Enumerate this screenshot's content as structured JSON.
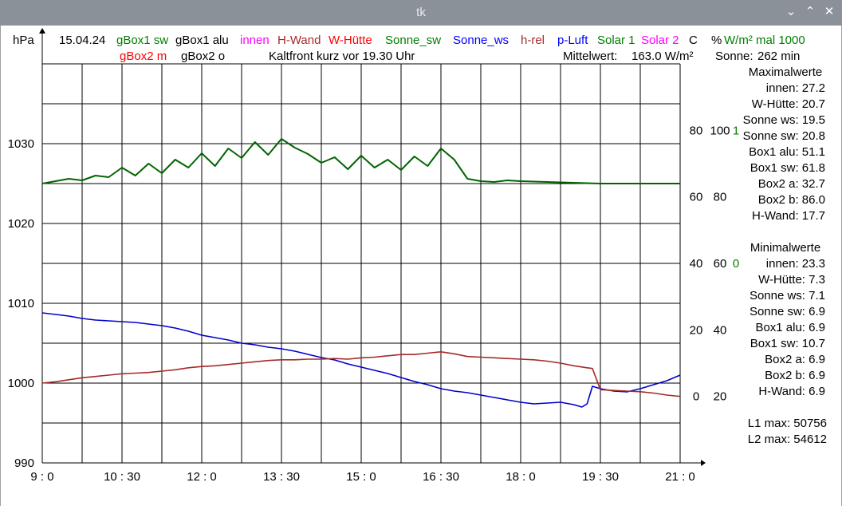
{
  "window": {
    "title": "tk",
    "controls": {
      "minimize": "⌄",
      "maximize": "⌃",
      "close": "✕"
    }
  },
  "colors": {
    "gBox1_sw": "#008000",
    "gBox1_alu": "#000000",
    "innen": "#ff00ff",
    "H_Wand": "#a52a2a",
    "W_Huette": "#ff0000",
    "Sonne_sw": "#008000",
    "Sonne_ws": "#0000ff",
    "h_rel": "#a52a2a",
    "p_Luft": "#0000ff",
    "Solar1": "#008000",
    "Solar2": "#ff00ff",
    "pressure_line": "#0000cc",
    "sun_line": "#006400",
    "hrel_line": "#a52a2a"
  },
  "header": {
    "date": "15.04.24",
    "unit_hpa": "hPa",
    "unit_c": "C",
    "unit_pct": "%",
    "unit_wm2": "W/m² mal 1000",
    "legend_row1": [
      {
        "label": "gBox1 sw",
        "color": "gBox1_sw"
      },
      {
        "label": "gBox1 alu",
        "color": "gBox1_alu"
      },
      {
        "label": "innen",
        "color": "innen"
      },
      {
        "label": "H-Wand",
        "color": "H_Wand"
      },
      {
        "label": "W-Hütte",
        "color": "W_Huette"
      },
      {
        "label": "Sonne_sw",
        "color": "Sonne_sw"
      },
      {
        "label": "Sonne_ws",
        "color": "Sonne_ws"
      },
      {
        "label": "h-rel",
        "color": "h_rel"
      },
      {
        "label": "p-Luft",
        "color": "p_Luft"
      },
      {
        "label": "Solar 1",
        "color": "Solar1"
      },
      {
        "label": "Solar 2",
        "color": "Solar2"
      }
    ],
    "legend_row2": [
      {
        "label": "gBox2 m",
        "color": "W_Huette"
      },
      {
        "label": "gBox2 o",
        "color": "gBox1_alu"
      }
    ],
    "note": "Kaltfront kurz vor 19.30 Uhr",
    "mittelwert_label": "Mittelwert:",
    "mittelwert_value": "163.0 W/m²",
    "sonne_label": "Sonne:",
    "sonne_value": "262 min"
  },
  "stats": {
    "max_title": "Maximalwerte",
    "max_lines": [
      "innen: 27.2",
      "W-Hütte: 20.7",
      "Sonne ws: 19.5",
      "Sonne sw: 20.8",
      "Box1 alu: 51.1",
      "Box1 sw: 61.8",
      "Box2 a: 32.7",
      "Box2 b: 86.0",
      "H-Wand: 17.7"
    ],
    "min_title": "Minimalwerte",
    "min_lines": [
      "innen: 23.3",
      "W-Hütte: 7.3",
      "Sonne ws: 7.1",
      "Sonne sw: 6.9",
      "Box1 alu: 6.9",
      "Box1 sw: 10.7",
      "Box2 a: 6.9",
      "Box2 b: 6.9",
      "H-Wand: 6.9"
    ],
    "l1": "L1 max: 50756",
    "l2": "L2 max: 54612"
  },
  "chart_data": {
    "type": "line",
    "x_ticks": [
      "9 : 0",
      "10 : 30",
      "12 : 0",
      "13 : 30",
      "15 : 0",
      "16 : 30",
      "18 : 0",
      "19 : 30",
      "21 : 0"
    ],
    "x_range_hours": [
      9,
      21
    ],
    "pressure_axis": {
      "ticks": [
        990,
        1000,
        1010,
        1020,
        1030
      ],
      "range": [
        990,
        1040
      ]
    },
    "temp_axis": {
      "ticks": [
        0,
        20,
        40,
        60,
        80
      ],
      "range": [
        -20,
        100
      ]
    },
    "rh_axis": {
      "ticks": [
        20,
        40,
        60,
        80,
        100
      ],
      "range": [
        0,
        120
      ]
    },
    "solar_axis": {
      "ticks": [
        0,
        1
      ],
      "range": [
        -1.5,
        1.5
      ]
    },
    "series": [
      {
        "name": "p-Luft",
        "color": "pressure_line",
        "axis": "pressure",
        "x": [
          9.0,
          9.25,
          9.5,
          9.75,
          10.0,
          10.25,
          10.5,
          10.75,
          11.0,
          11.25,
          11.5,
          11.75,
          12.0,
          12.25,
          12.5,
          12.75,
          13.0,
          13.25,
          13.5,
          13.75,
          14.0,
          14.25,
          14.5,
          14.75,
          15.0,
          15.25,
          15.5,
          15.75,
          16.0,
          16.25,
          16.5,
          16.75,
          17.0,
          17.25,
          17.5,
          17.75,
          18.0,
          18.25,
          18.5,
          18.75,
          19.0,
          19.15,
          19.25,
          19.35,
          19.5,
          19.75,
          20.0,
          20.25,
          20.5,
          20.75,
          21.0
        ],
        "y": [
          1008.8,
          1008.6,
          1008.4,
          1008.1,
          1007.9,
          1007.8,
          1007.7,
          1007.6,
          1007.4,
          1007.2,
          1006.9,
          1006.5,
          1006.0,
          1005.7,
          1005.4,
          1005.0,
          1004.8,
          1004.5,
          1004.3,
          1004.0,
          1003.6,
          1003.2,
          1002.9,
          1002.4,
          1002.0,
          1001.6,
          1001.2,
          1000.7,
          1000.2,
          999.8,
          999.3,
          999.0,
          998.8,
          998.5,
          998.2,
          997.9,
          997.6,
          997.4,
          997.5,
          997.6,
          997.3,
          997.0,
          997.4,
          999.6,
          999.3,
          999.0,
          998.9,
          999.3,
          999.8,
          1000.3,
          1001.0
        ]
      },
      {
        "name": "h-rel",
        "color": "hrel_line",
        "axis": "rh",
        "x": [
          9.0,
          9.25,
          9.5,
          9.75,
          10.0,
          10.25,
          10.5,
          10.75,
          11.0,
          11.25,
          11.5,
          11.75,
          12.0,
          12.25,
          12.5,
          12.75,
          13.0,
          13.25,
          13.5,
          13.75,
          14.0,
          14.25,
          14.5,
          14.75,
          15.0,
          15.25,
          15.5,
          15.75,
          16.0,
          16.25,
          16.5,
          16.75,
          17.0,
          17.25,
          17.5,
          17.75,
          18.0,
          18.25,
          18.5,
          18.75,
          19.0,
          19.25,
          19.35,
          19.5,
          19.75,
          20.0,
          20.25,
          20.5,
          20.75,
          21.0
        ],
        "y": [
          24.0,
          24.4,
          25.0,
          25.6,
          26.0,
          26.4,
          26.8,
          27.0,
          27.2,
          27.6,
          28.0,
          28.6,
          29.0,
          29.2,
          29.6,
          30.0,
          30.4,
          30.8,
          31.0,
          31.0,
          31.2,
          31.2,
          31.4,
          31.2,
          31.6,
          31.8,
          32.2,
          32.6,
          32.6,
          33.0,
          33.4,
          32.8,
          32.0,
          31.8,
          31.6,
          31.4,
          31.2,
          31.0,
          30.6,
          30.0,
          29.2,
          28.6,
          28.4,
          22.0,
          21.8,
          21.6,
          21.4,
          21.0,
          20.4,
          20.0
        ]
      },
      {
        "name": "Sonne_sw",
        "color": "sun_line",
        "axis": "pressure",
        "x": [
          9.0,
          9.25,
          9.5,
          9.75,
          10.0,
          10.25,
          10.5,
          10.75,
          11.0,
          11.25,
          11.5,
          11.75,
          12.0,
          12.25,
          12.5,
          12.75,
          13.0,
          13.25,
          13.5,
          13.75,
          14.0,
          14.25,
          14.5,
          14.75,
          15.0,
          15.25,
          15.5,
          15.75,
          16.0,
          16.25,
          16.5,
          16.75,
          17.0,
          17.25,
          17.5,
          17.75,
          18.0,
          18.5,
          19.0,
          19.5,
          20.0,
          20.5,
          21.0
        ],
        "y": [
          1025.0,
          1025.3,
          1025.6,
          1025.4,
          1026.0,
          1025.8,
          1027.0,
          1026.0,
          1027.5,
          1026.3,
          1028.0,
          1027.0,
          1028.8,
          1027.2,
          1029.4,
          1028.2,
          1030.2,
          1028.6,
          1030.6,
          1029.5,
          1028.7,
          1027.6,
          1028.3,
          1026.8,
          1028.5,
          1027.0,
          1028.0,
          1026.7,
          1028.4,
          1027.2,
          1029.4,
          1028.0,
          1025.6,
          1025.3,
          1025.2,
          1025.4,
          1025.3,
          1025.2,
          1025.1,
          1025.0,
          1025.0,
          1025.0,
          1025.0
        ]
      }
    ]
  }
}
